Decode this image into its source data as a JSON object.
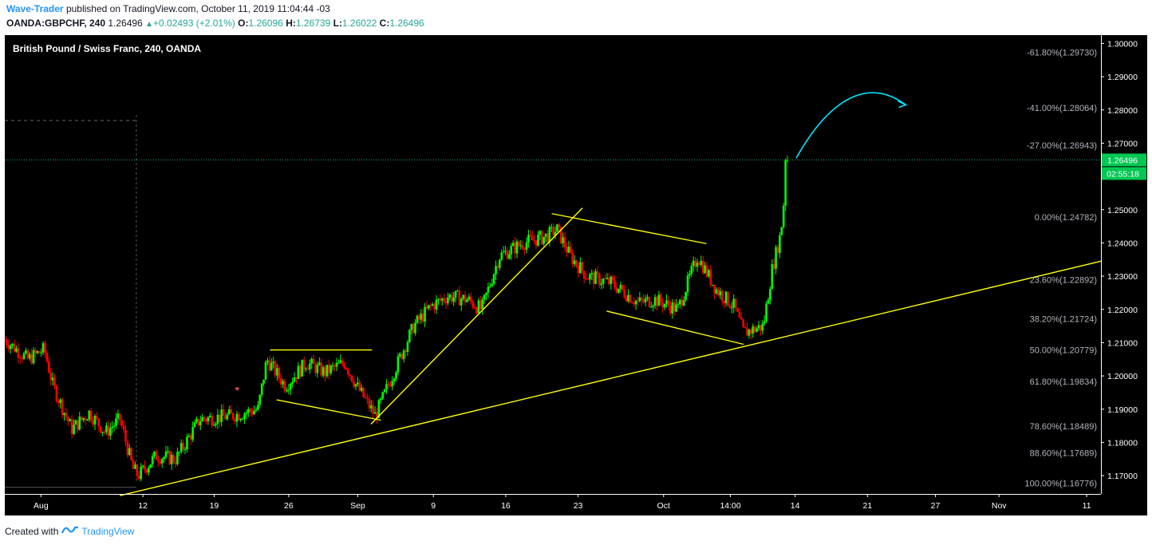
{
  "header": {
    "author": "Wave-Trader",
    "published_text": "published on TradingView.com, October 11, 2019 11:04:44 -03",
    "symbol": "OANDA:GBPCHF, 240",
    "last": "1.26496",
    "change": "+0.02493 (+2.01%)",
    "open_label": "O:",
    "open": "1.26096",
    "high_label": "H:",
    "high": "1.26739",
    "low_label": "L:",
    "low": "1.26022",
    "close_label": "C:",
    "close": "1.26496"
  },
  "footer": {
    "created_with": "Created with",
    "brand": "TradingView"
  },
  "colors": {
    "up": "#00ff00",
    "down": "#ff0000",
    "lines": "#ffff00",
    "arrow": "#00e5ff",
    "grid_text": "#b2b5be",
    "price_tag": "#00c853"
  },
  "chart_data": {
    "type": "candlestick",
    "title": "British Pound / Swiss Franc, 240, OANDA",
    "y_axis": {
      "ylim": [
        1.1645,
        1.3025
      ],
      "ticks": [
        "1.30000",
        "1.29000",
        "1.28000",
        "1.27000",
        "1.26000",
        "1.25000",
        "1.24000",
        "1.23000",
        "1.22000",
        "1.21000",
        "1.20000",
        "1.19000",
        "1.18000",
        "1.17000"
      ],
      "tick_values": [
        1.3,
        1.29,
        1.28,
        1.27,
        1.26,
        1.25,
        1.24,
        1.23,
        1.22,
        1.21,
        1.2,
        1.19,
        1.18,
        1.17
      ]
    },
    "x_axis": {
      "xlim": [
        0,
        100
      ],
      "labels": [
        {
          "text": "Aug",
          "x": 3.3
        },
        {
          "text": "12",
          "x": 12.6
        },
        {
          "text": "19",
          "x": 19.1
        },
        {
          "text": "26",
          "x": 25.9
        },
        {
          "text": "Sep",
          "x": 32.2
        },
        {
          "text": "9",
          "x": 39.1
        },
        {
          "text": "16",
          "x": 45.7
        },
        {
          "text": "23",
          "x": 52.3
        },
        {
          "text": "Oct",
          "x": 60.1
        },
        {
          "text": "14:00",
          "x": 66.2
        },
        {
          "text": "14",
          "x": 72.1
        },
        {
          "text": "21",
          "x": 78.7
        },
        {
          "text": "27",
          "x": 84.9
        },
        {
          "text": "Nov",
          "x": 90.7
        },
        {
          "text": "11",
          "x": 98.7
        }
      ]
    },
    "fib_levels": [
      {
        "label": "-61.80%(1.29730)",
        "value": 1.2973
      },
      {
        "label": "-41.00%(1.28064)",
        "value": 1.28064
      },
      {
        "label": "-27.00%(1.26943)",
        "value": 1.26943
      },
      {
        "label": "0.00%(1.24782)",
        "value": 1.24782
      },
      {
        "label": "23.60%(1.22892)",
        "value": 1.22892
      },
      {
        "label": "38.20%(1.21724)",
        "value": 1.21724
      },
      {
        "label": "50.00%(1.20779)",
        "value": 1.20779
      },
      {
        "label": "61.80%(1.19834)",
        "value": 1.19834
      },
      {
        "label": "78.60%(1.18489)",
        "value": 1.18489
      },
      {
        "label": "88.60%(1.17689)",
        "value": 1.17689
      },
      {
        "label": "100.00%(1.16776)",
        "value": 1.16776
      }
    ],
    "last_price": {
      "label": "1.26496",
      "value": 1.26496
    },
    "countdown": "02:55:18",
    "anchors": [
      {
        "x": 0.0,
        "y": 1.211
      },
      {
        "x": 2.1,
        "y": 1.205
      },
      {
        "x": 3.6,
        "y": 1.208
      },
      {
        "x": 4.4,
        "y": 1.197
      },
      {
        "x": 6.1,
        "y": 1.184
      },
      {
        "x": 7.7,
        "y": 1.189
      },
      {
        "x": 9.2,
        "y": 1.183
      },
      {
        "x": 10.5,
        "y": 1.187
      },
      {
        "x": 11.7,
        "y": 1.172
      },
      {
        "x": 12.2,
        "y": 1.17
      },
      {
        "x": 13.8,
        "y": 1.176
      },
      {
        "x": 15.6,
        "y": 1.175
      },
      {
        "x": 17.8,
        "y": 1.187
      },
      {
        "x": 20.7,
        "y": 1.188
      },
      {
        "x": 23.1,
        "y": 1.19
      },
      {
        "x": 23.9,
        "y": 1.205
      },
      {
        "x": 25.6,
        "y": 1.197
      },
      {
        "x": 27.5,
        "y": 1.204
      },
      {
        "x": 29.2,
        "y": 1.201
      },
      {
        "x": 31.0,
        "y": 1.204
      },
      {
        "x": 32.1,
        "y": 1.197
      },
      {
        "x": 33.8,
        "y": 1.188
      },
      {
        "x": 35.6,
        "y": 1.202
      },
      {
        "x": 37.3,
        "y": 1.215
      },
      {
        "x": 38.9,
        "y": 1.221
      },
      {
        "x": 40.4,
        "y": 1.224
      },
      {
        "x": 42.2,
        "y": 1.223
      },
      {
        "x": 43.5,
        "y": 1.22
      },
      {
        "x": 45.1,
        "y": 1.236
      },
      {
        "x": 47.3,
        "y": 1.24
      },
      {
        "x": 49.4,
        "y": 1.242
      },
      {
        "x": 50.4,
        "y": 1.244
      },
      {
        "x": 51.6,
        "y": 1.236
      },
      {
        "x": 53.1,
        "y": 1.23
      },
      {
        "x": 55.3,
        "y": 1.228
      },
      {
        "x": 57.8,
        "y": 1.222
      },
      {
        "x": 59.3,
        "y": 1.223
      },
      {
        "x": 61.4,
        "y": 1.22
      },
      {
        "x": 63.2,
        "y": 1.236
      },
      {
        "x": 64.9,
        "y": 1.226
      },
      {
        "x": 66.5,
        "y": 1.221
      },
      {
        "x": 67.4,
        "y": 1.213
      },
      {
        "x": 69.2,
        "y": 1.215
      },
      {
        "x": 70.0,
        "y": 1.232
      },
      {
        "x": 70.8,
        "y": 1.243
      },
      {
        "x": 71.4,
        "y": 1.264
      }
    ]
  }
}
